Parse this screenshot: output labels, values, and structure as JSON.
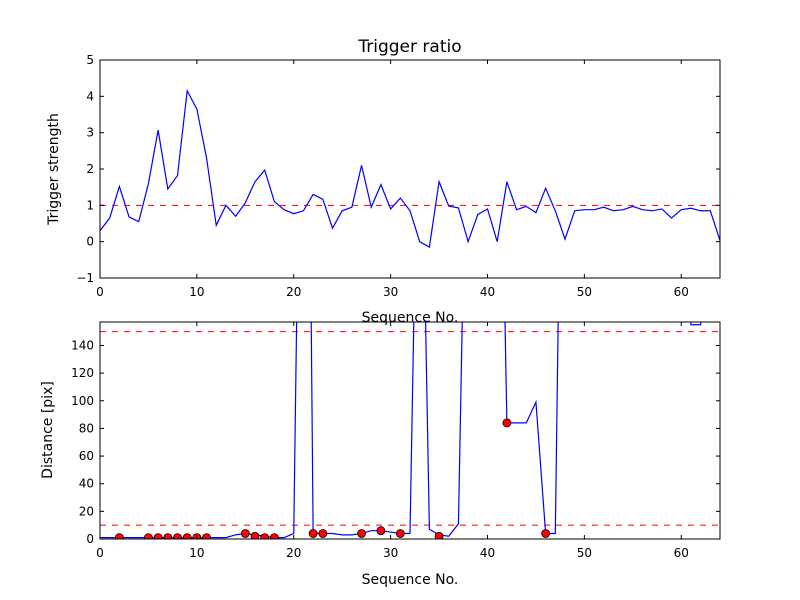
{
  "chart_data": [
    {
      "type": "line",
      "title": "Trigger ratio",
      "xlabel": "Sequence No.",
      "ylabel": "Trigger strength",
      "xlim": [
        0,
        64
      ],
      "ylim": [
        -1,
        5
      ],
      "xticks": [
        0,
        10,
        20,
        30,
        40,
        50,
        60
      ],
      "yticks": [
        -1,
        0,
        1,
        2,
        3,
        4,
        5
      ],
      "grid": false,
      "line_color": "#0000ff",
      "threshold": {
        "value": 1.0,
        "color": "#ff0000",
        "style": "dashed"
      },
      "x": [
        0,
        1,
        2,
        3,
        4,
        5,
        6,
        7,
        8,
        9,
        10,
        11,
        12,
        13,
        14,
        15,
        16,
        17,
        18,
        19,
        20,
        21,
        22,
        23,
        24,
        25,
        26,
        27,
        28,
        29,
        30,
        31,
        32,
        33,
        34,
        35,
        36,
        37,
        38,
        39,
        40,
        41,
        42,
        43,
        44,
        45,
        46,
        47,
        48,
        49,
        50,
        51,
        52,
        53,
        54,
        55,
        56,
        57,
        58,
        59,
        60,
        61,
        62,
        63,
        64
      ],
      "y": [
        0.3,
        0.65,
        1.52,
        0.68,
        0.55,
        1.6,
        3.07,
        1.45,
        1.82,
        4.15,
        3.65,
        2.3,
        0.45,
        1.0,
        0.7,
        1.07,
        1.65,
        1.97,
        1.1,
        0.88,
        0.77,
        0.85,
        1.3,
        1.17,
        0.37,
        0.85,
        0.95,
        2.1,
        0.95,
        1.57,
        0.9,
        1.2,
        0.85,
        0.0,
        -0.15,
        1.65,
        0.98,
        0.93,
        0.0,
        0.75,
        0.9,
        0.0,
        1.65,
        0.88,
        0.97,
        0.8,
        1.47,
        0.85,
        0.07,
        0.85,
        0.88,
        0.88,
        0.95,
        0.85,
        0.88,
        0.97,
        0.88,
        0.85,
        0.9,
        0.65,
        0.88,
        0.92,
        0.85,
        0.85,
        0.03
      ]
    },
    {
      "type": "line",
      "title": "",
      "xlabel": "Sequence No.",
      "ylabel": "Distance [pix]",
      "xlim": [
        0,
        64
      ],
      "ylim": [
        0,
        157
      ],
      "xticks": [
        0,
        10,
        20,
        30,
        40,
        50,
        60
      ],
      "yticks": [
        0,
        20,
        40,
        60,
        80,
        100,
        120,
        140
      ],
      "grid": false,
      "line_color": "#0000ff",
      "thresholds": [
        {
          "value": 10,
          "color": "#ff0000",
          "style": "dashed"
        },
        {
          "value": 150,
          "color": "#ff0000",
          "style": "dashed"
        }
      ],
      "line_segments": [
        [
          [
            0,
            1
          ],
          [
            1,
            1
          ],
          [
            2,
            1
          ],
          [
            3,
            1
          ],
          [
            4,
            1
          ],
          [
            5,
            1
          ],
          [
            6,
            1
          ],
          [
            7,
            1
          ],
          [
            8,
            1
          ],
          [
            9,
            1
          ],
          [
            10,
            1
          ],
          [
            11,
            1
          ],
          [
            12,
            1
          ],
          [
            13,
            1
          ],
          [
            14,
            3
          ],
          [
            15,
            4
          ],
          [
            16,
            3
          ],
          [
            17,
            2
          ],
          [
            18,
            1
          ],
          [
            19,
            1
          ],
          [
            20,
            4
          ],
          [
            20.3,
            160
          ]
        ],
        [
          [
            21.8,
            160
          ],
          [
            22,
            4
          ],
          [
            23,
            4
          ],
          [
            24,
            4
          ],
          [
            25,
            3
          ],
          [
            26,
            3
          ],
          [
            27,
            4
          ],
          [
            28,
            6
          ],
          [
            29,
            6
          ],
          [
            30,
            5
          ],
          [
            31,
            4
          ],
          [
            32,
            4
          ],
          [
            32.4,
            160
          ]
        ],
        [
          [
            33.6,
            160
          ],
          [
            34,
            7
          ],
          [
            35,
            3
          ],
          [
            36,
            2
          ],
          [
            37,
            11
          ],
          [
            37.4,
            160
          ]
        ],
        [
          [
            41.8,
            160
          ],
          [
            42,
            84
          ],
          [
            43,
            84
          ],
          [
            44,
            84
          ],
          [
            45,
            99
          ],
          [
            46,
            4
          ],
          [
            47,
            4
          ],
          [
            47.3,
            160
          ]
        ],
        [
          [
            61,
            157
          ],
          [
            61,
            155
          ],
          [
            62,
            155
          ],
          [
            62,
            157
          ]
        ]
      ],
      "markers": {
        "color": "#ff0000",
        "x": [
          2,
          5,
          6,
          7,
          8,
          9,
          10,
          11,
          15,
          16,
          17,
          18,
          22,
          23,
          27,
          29,
          31,
          35,
          42,
          46
        ],
        "y": [
          1,
          1,
          1,
          1,
          1,
          1,
          1,
          1,
          4,
          2,
          1,
          1,
          4,
          4,
          4,
          6,
          4,
          2,
          84,
          4
        ]
      }
    }
  ]
}
